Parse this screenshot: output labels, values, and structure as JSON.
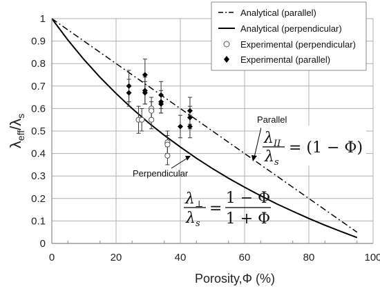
{
  "chart_data": {
    "type": "line",
    "xlabel": "Porosity,Φ (%)",
    "ylabel_main": "λ",
    "ylabel_sub1": "eff",
    "ylabel_mid": "/λ",
    "ylabel_sub2": "s",
    "xlim": [
      0,
      100
    ],
    "ylim": [
      0,
      1
    ],
    "xticks": [
      0,
      20,
      40,
      60,
      80,
      100
    ],
    "xtick_labels": [
      "0",
      "20",
      "40",
      "60",
      "80",
      "100"
    ],
    "yticks": [
      0,
      0.1,
      0.2,
      0.3,
      0.4,
      0.5,
      0.6,
      0.7,
      0.8,
      0.9,
      1
    ],
    "ytick_labels": [
      "0",
      "0.1",
      "0.2",
      "0.3",
      "0.4",
      "0.5",
      "0.6",
      "0.7",
      "0.8",
      "0.9",
      "1"
    ],
    "grid": true,
    "legend_position": "top-right",
    "series": [
      {
        "name": "Analytical (parallel)",
        "kind": "line-dashdot",
        "x": [
          0,
          95
        ],
        "y": [
          1,
          0.05
        ]
      },
      {
        "name": "Analytical (perpendicular)",
        "kind": "line-solid",
        "x": [
          0,
          5,
          10,
          15,
          20,
          25,
          30,
          35,
          40,
          45,
          50,
          55,
          60,
          65,
          70,
          75,
          80,
          85,
          90,
          95
        ],
        "y": [
          1,
          0.905,
          0.818,
          0.739,
          0.667,
          0.6,
          0.538,
          0.481,
          0.429,
          0.379,
          0.333,
          0.29,
          0.25,
          0.212,
          0.176,
          0.143,
          0.111,
          0.081,
          0.053,
          0.026
        ]
      },
      {
        "name": "Experimental (perpendicular)",
        "kind": "marker-open-circle",
        "points": [
          {
            "x": 27,
            "y": 0.55,
            "err": 0.06
          },
          {
            "x": 28,
            "y": 0.55,
            "err": 0.05
          },
          {
            "x": 31,
            "y": 0.6,
            "err": 0.05
          },
          {
            "x": 31,
            "y": 0.59,
            "err": 0.04
          },
          {
            "x": 31,
            "y": 0.55,
            "err": 0.04
          },
          {
            "x": 36,
            "y": 0.45,
            "err": 0.05
          },
          {
            "x": 36,
            "y": 0.44,
            "err": 0.04
          },
          {
            "x": 36,
            "y": 0.39,
            "err": 0.04
          }
        ]
      },
      {
        "name": "Experimental (parallel)",
        "kind": "marker-filled-diamond",
        "points": [
          {
            "x": 24,
            "y": 0.7,
            "err": 0.07
          },
          {
            "x": 24,
            "y": 0.67,
            "err": 0.06
          },
          {
            "x": 29,
            "y": 0.75,
            "err": 0.07
          },
          {
            "x": 29,
            "y": 0.68,
            "err": 0.06
          },
          {
            "x": 29,
            "y": 0.67,
            "err": 0.05
          },
          {
            "x": 34,
            "y": 0.66,
            "err": 0.06
          },
          {
            "x": 34,
            "y": 0.63,
            "err": 0.05
          },
          {
            "x": 34,
            "y": 0.62,
            "err": 0.04
          },
          {
            "x": 40,
            "y": 0.52,
            "err": 0.05
          },
          {
            "x": 43,
            "y": 0.59,
            "err": 0.06
          },
          {
            "x": 43,
            "y": 0.56,
            "err": 0.05
          },
          {
            "x": 43,
            "y": 0.52,
            "err": 0.05
          }
        ]
      }
    ],
    "annotations": {
      "parallel_label": "Parallel",
      "perpendicular_label": "Perpendicular",
      "eq_parallel": {
        "lhs_num": "λ",
        "lhs_num_sub": "II",
        "lhs_den": "λ",
        "lhs_den_sub": "s",
        "rhs": "= (1 − Φ)"
      },
      "eq_perpendicular": {
        "lhs_num": "λ",
        "lhs_num_sub": "⊥",
        "lhs_den": "λ",
        "lhs_den_sub": "s",
        "eq_sign": "=",
        "rhs_num": "1 − Φ",
        "rhs_den": "1 + Φ"
      }
    },
    "colors": {
      "lines": "#000000",
      "grid": "#b0b0b0",
      "open_marker_stroke": "#555555",
      "error_bars": "#333333"
    }
  }
}
